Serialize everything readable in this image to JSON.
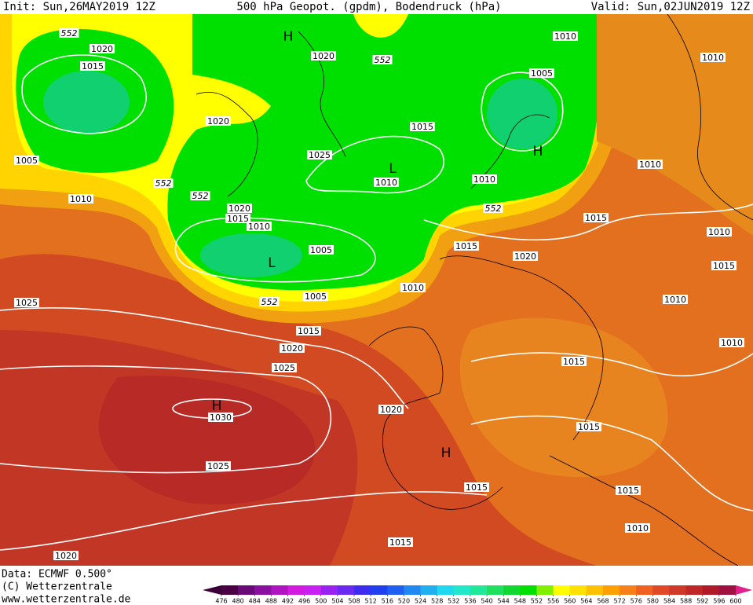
{
  "header": {
    "init": "Init: Sun,26MAY2019 12Z",
    "title": "500 hPa Geopot. (gpdm), Bodendruck (hPa)",
    "valid": "Valid: Sun,02JUN2019 12Z"
  },
  "map": {
    "isobar_labels": [
      "552",
      "1020",
      "1015",
      "1005",
      "1010",
      "552",
      "552",
      "1020",
      "1020",
      "552",
      "1010",
      "1010",
      "1005",
      "1015",
      "1025",
      "1010",
      "1010",
      "1010",
      "1020",
      "1015",
      "1010",
      "552",
      "1015",
      "1010",
      "1015",
      "1015",
      "1020",
      "1005",
      "1010",
      "1005",
      "552",
      "1025",
      "1010",
      "1015",
      "1020",
      "1010",
      "1015",
      "1025",
      "1020",
      "1030",
      "1015",
      "1025",
      "1015",
      "1015",
      "1010",
      "1015",
      "1020"
    ],
    "pressure_centers": [
      "H",
      "H",
      "L",
      "L",
      "H",
      "H"
    ]
  },
  "footer": {
    "data": "Data: ECMWF   0.500°",
    "copyright": "(C) Wetterzentrale",
    "url": "www.wetterzentrale.de"
  },
  "colorbar": {
    "ticks": [
      476,
      480,
      484,
      488,
      492,
      496,
      500,
      504,
      508,
      512,
      516,
      520,
      524,
      528,
      532,
      536,
      540,
      544,
      548,
      552,
      556,
      560,
      564,
      568,
      572,
      576,
      580,
      584,
      588,
      592,
      596,
      600
    ]
  }
}
